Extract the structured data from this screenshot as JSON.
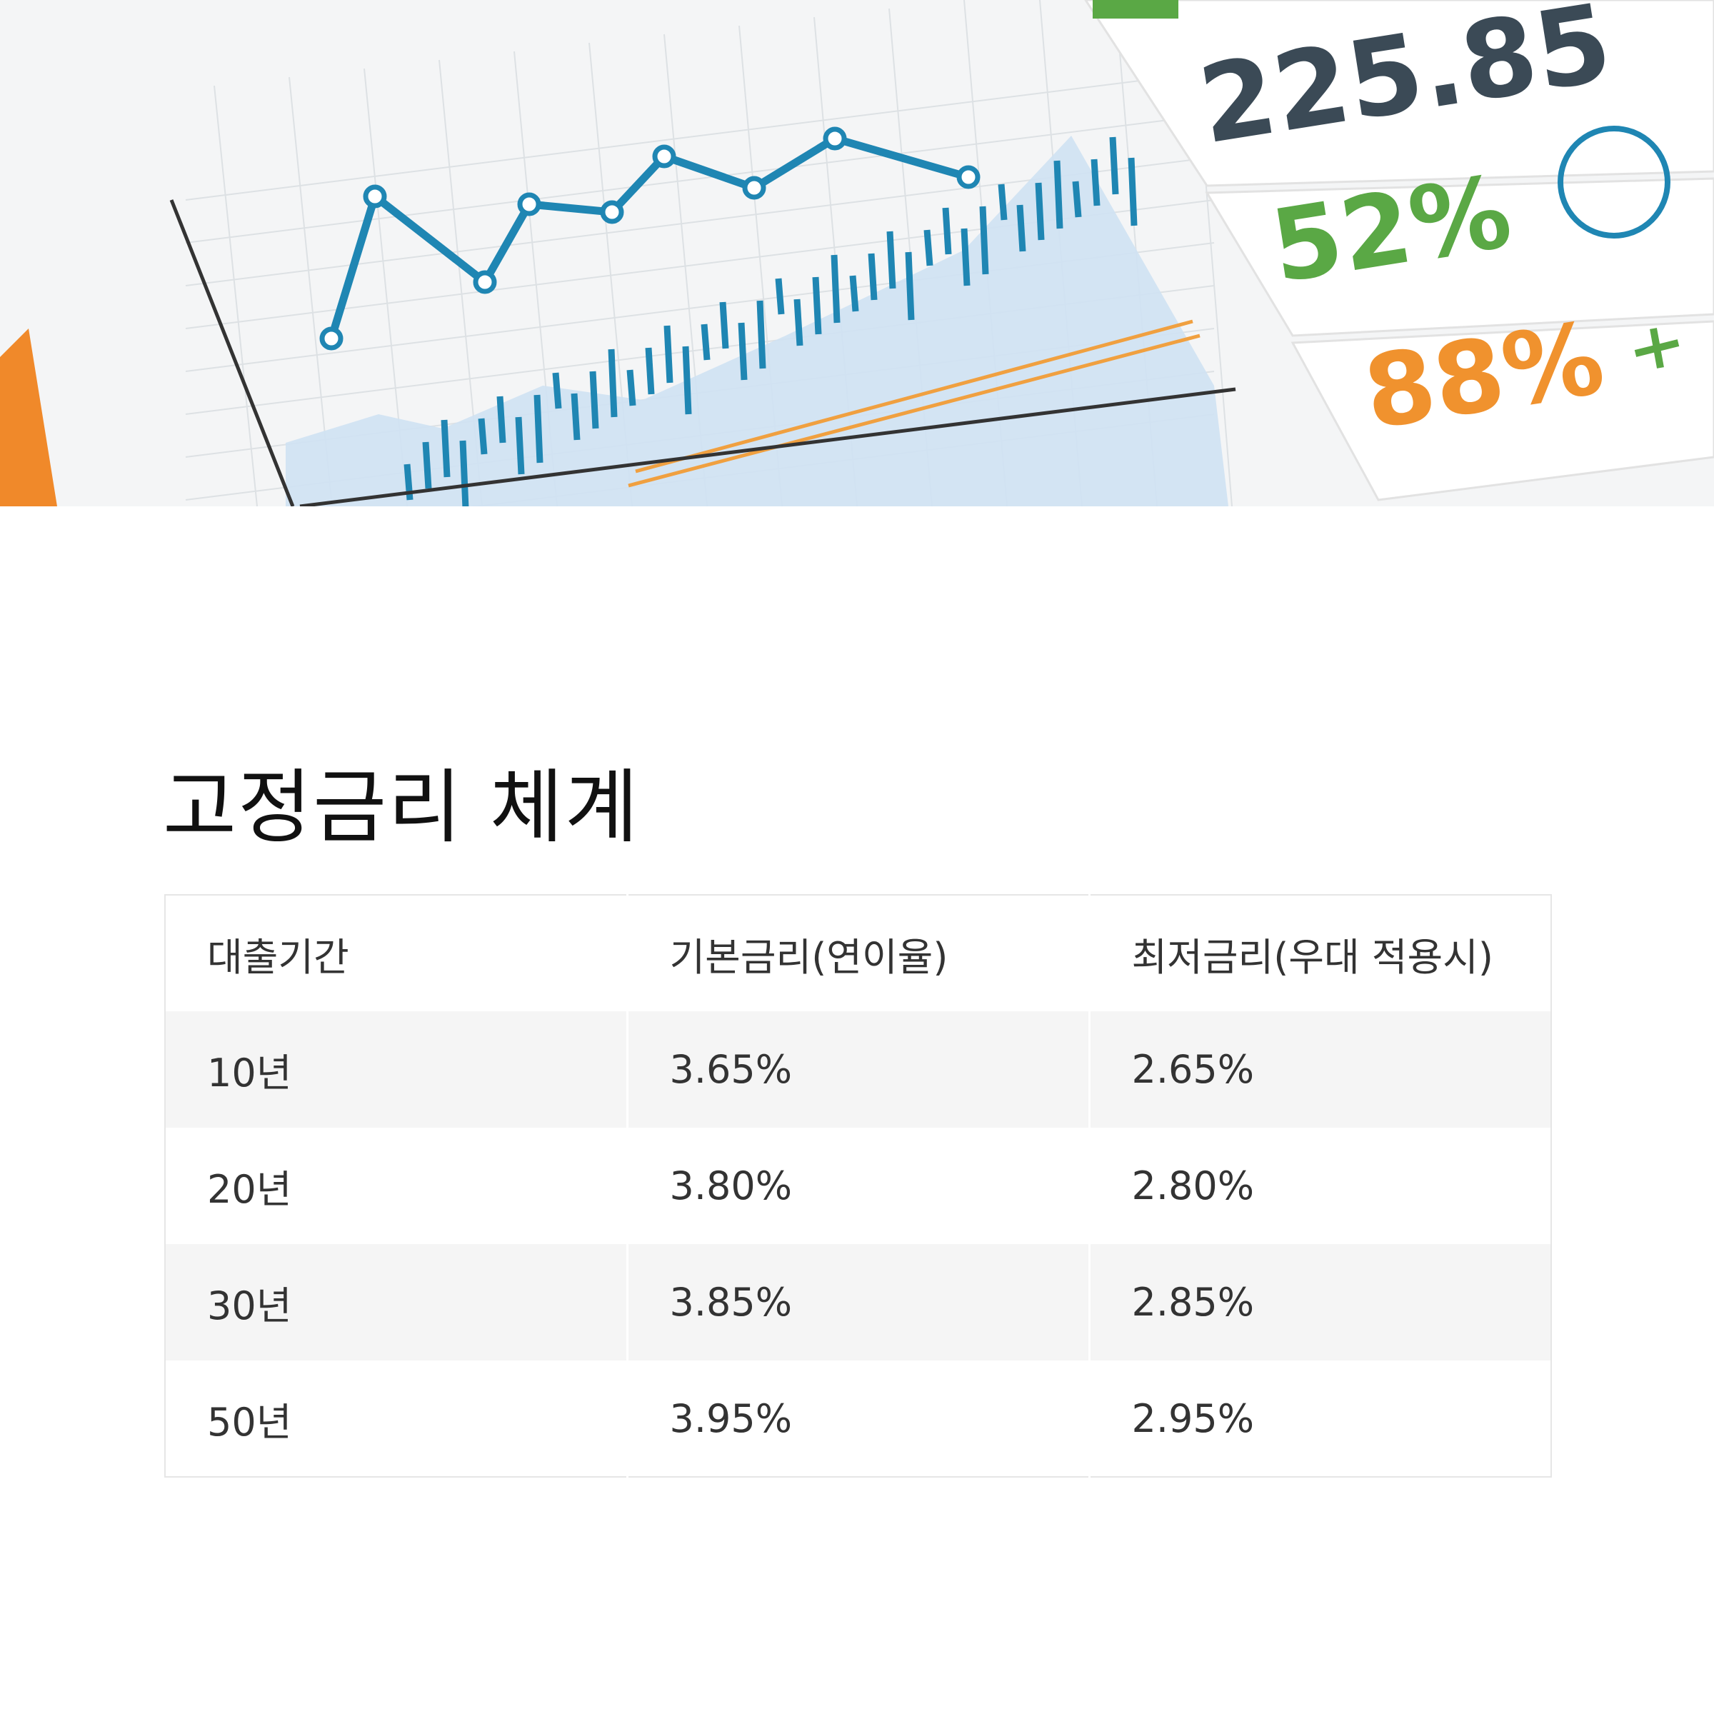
{
  "banner": {
    "stats": [
      "225.85",
      "52%",
      "88%"
    ]
  },
  "title": "고정금리 체계",
  "table": {
    "headers": [
      "대출기간",
      "기본금리(연이율)",
      "최저금리(우대 적용시)"
    ],
    "rows": [
      [
        "10년",
        "3.65%",
        "2.65%"
      ],
      [
        "20년",
        "3.80%",
        "2.80%"
      ],
      [
        "30년",
        "3.85%",
        "2.85%"
      ],
      [
        "50년",
        "3.95%",
        "2.95%"
      ]
    ]
  }
}
